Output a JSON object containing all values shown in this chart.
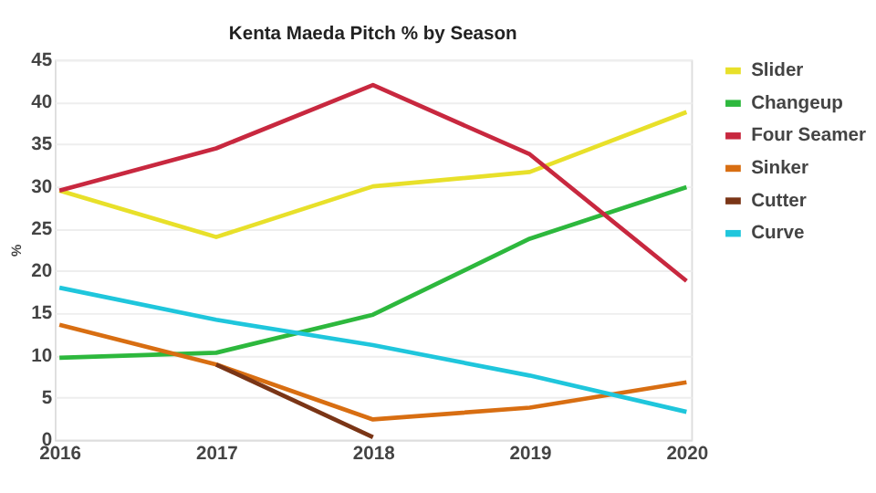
{
  "chart_data": {
    "type": "line",
    "title": "Kenta Maeda Pitch % by Season",
    "ylabel": "%",
    "categories": [
      "2016",
      "2017",
      "2018",
      "2019",
      "2020"
    ],
    "series": [
      {
        "name": "Slider",
        "color": "#e8e02a",
        "values": [
          29.5,
          24,
          30,
          31.7,
          38.8
        ]
      },
      {
        "name": "Changeup",
        "color": "#2db83d",
        "values": [
          9.7,
          10.3,
          14.8,
          23.8,
          29.9
        ]
      },
      {
        "name": "Four Seamer",
        "color": "#c8283f",
        "values": [
          29.5,
          34.5,
          42,
          33.8,
          18.8
        ]
      },
      {
        "name": "Sinker",
        "color": "#d86e12",
        "values": [
          13.6,
          8.9,
          2.4,
          3.8,
          6.8
        ]
      },
      {
        "name": "Cutter",
        "color": "#7a3516",
        "values": [
          null,
          8.9,
          0.3,
          null,
          null
        ]
      },
      {
        "name": "Curve",
        "color": "#1fc6dc",
        "values": [
          18,
          14.2,
          11.2,
          7.6,
          3.3
        ]
      }
    ],
    "ylim": [
      0,
      45
    ],
    "yticks": [
      0,
      5,
      10,
      15,
      20,
      25,
      30,
      35,
      40,
      45
    ],
    "grid": "y",
    "legend": "right",
    "marker": "none",
    "line_style": "solid"
  }
}
